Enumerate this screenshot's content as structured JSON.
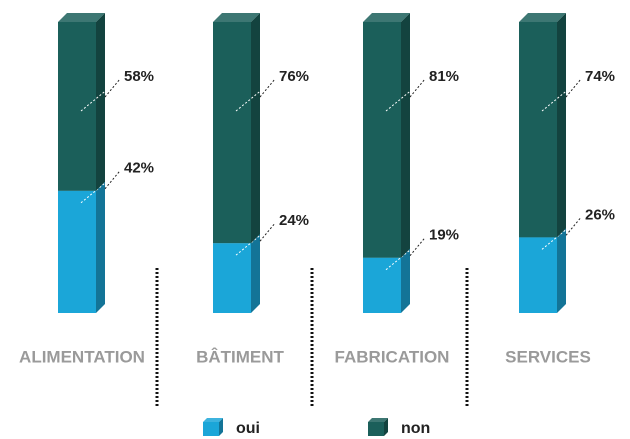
{
  "chart_data": {
    "type": "bar",
    "stacked": true,
    "categories": [
      "ALIMENTATION",
      "BÂTIMENT",
      "FABRICATION",
      "SERVICES"
    ],
    "series": [
      {
        "name": "oui",
        "color": "#1ba6d8",
        "values": [
          42,
          24,
          19,
          26
        ],
        "value_labels": [
          "42%",
          "24%",
          "19%",
          "26%"
        ]
      },
      {
        "name": "non",
        "color": "#1b5f5a",
        "values": [
          58,
          76,
          81,
          74
        ],
        "value_labels": [
          "58%",
          "76%",
          "81%",
          "74%"
        ]
      }
    ]
  }
}
